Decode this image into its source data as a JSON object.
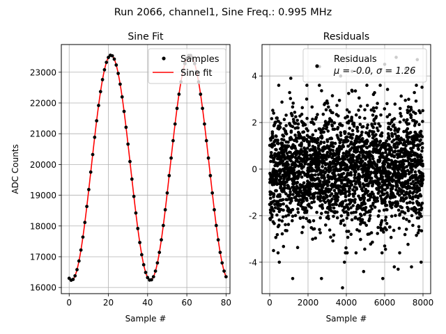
{
  "suptitle": "Run 2066, channel1, Sine Freq.: 0.995 MHz",
  "colors": {
    "samples": "#000000",
    "fit": "#ff0000",
    "grid": "#b0b0b0",
    "axis": "#000000"
  },
  "chart_data": [
    {
      "type": "scatter+line",
      "title": "Sine Fit",
      "xlabel": "Sample #",
      "ylabel": "ADC Counts",
      "xlim": [
        -4,
        82
      ],
      "ylim": [
        15800,
        23900
      ],
      "xticks": [
        0,
        20,
        40,
        60,
        80
      ],
      "yticks": [
        16000,
        17000,
        18000,
        19000,
        20000,
        21000,
        22000,
        23000
      ],
      "grid": true,
      "legend": {
        "position": "upper-right",
        "entries": [
          {
            "label": "Samples",
            "kind": "marker"
          },
          {
            "label": "Sine fit",
            "kind": "line"
          }
        ]
      },
      "fit": {
        "offset": 19895,
        "amplitude": 3660,
        "period_samples": 40.2,
        "peak_sample": 21.3
      },
      "series": [
        {
          "name": "Samples",
          "kind": "points",
          "x": [
            0,
            1,
            2,
            3,
            4,
            5,
            6,
            7,
            8,
            9,
            10,
            11,
            12,
            13,
            14,
            15,
            16,
            17,
            18,
            19,
            20,
            21,
            22,
            23,
            24,
            25,
            26,
            27,
            28,
            29,
            30,
            31,
            32,
            33,
            34,
            35,
            36,
            37,
            38,
            39,
            40,
            41,
            42,
            43,
            44,
            45,
            46,
            47,
            48,
            49,
            50,
            51,
            52,
            53,
            54,
            55,
            56,
            57,
            58,
            59,
            60,
            61,
            62,
            63,
            64,
            65,
            66,
            67,
            68,
            69,
            70,
            71,
            72,
            73,
            74,
            75,
            76,
            77,
            78,
            79,
            80
          ]
        },
        {
          "name": "Sine fit",
          "kind": "line"
        }
      ]
    },
    {
      "type": "scatter",
      "title": "Residuals",
      "xlabel": "Sample #",
      "ylabel": "",
      "xlim": [
        -400,
        8400
      ],
      "ylim": [
        -5.35,
        5.35
      ],
      "xticks": [
        0,
        2000,
        4000,
        6000,
        8000
      ],
      "yticks": [
        -4,
        -2,
        0,
        2,
        4
      ],
      "grid": true,
      "legend": {
        "position": "upper-right",
        "entries": [
          {
            "label": "Residuals",
            "kind": "marker"
          },
          {
            "label": "μ = -0.0, σ = 1.26",
            "kind": "text"
          }
        ]
      },
      "series": [
        {
          "name": "Residuals",
          "mu": -0.0,
          "sigma": 1.26,
          "n_points": 8000,
          "outliers": [
            [
              2600,
              4.4
            ],
            [
              3700,
              4.0
            ],
            [
              6000,
              4.5
            ],
            [
              6600,
              4.8
            ],
            [
              7700,
              4.7
            ],
            [
              7100,
              4.3
            ],
            [
              5200,
              4.2
            ],
            [
              4300,
              4.2
            ],
            [
              1100,
              3.9
            ],
            [
              3800,
              -5.1
            ],
            [
              2700,
              -4.7
            ],
            [
              5900,
              -4.7
            ],
            [
              1200,
              -4.7
            ],
            [
              4900,
              -4.4
            ],
            [
              6700,
              -4.3
            ],
            [
              6500,
              -4.2
            ],
            [
              7400,
              -4.2
            ],
            [
              500,
              -4.0
            ],
            [
              7900,
              -4.0
            ],
            [
              3900,
              -4.0
            ],
            [
              200,
              -3.5
            ]
          ]
        }
      ]
    }
  ]
}
